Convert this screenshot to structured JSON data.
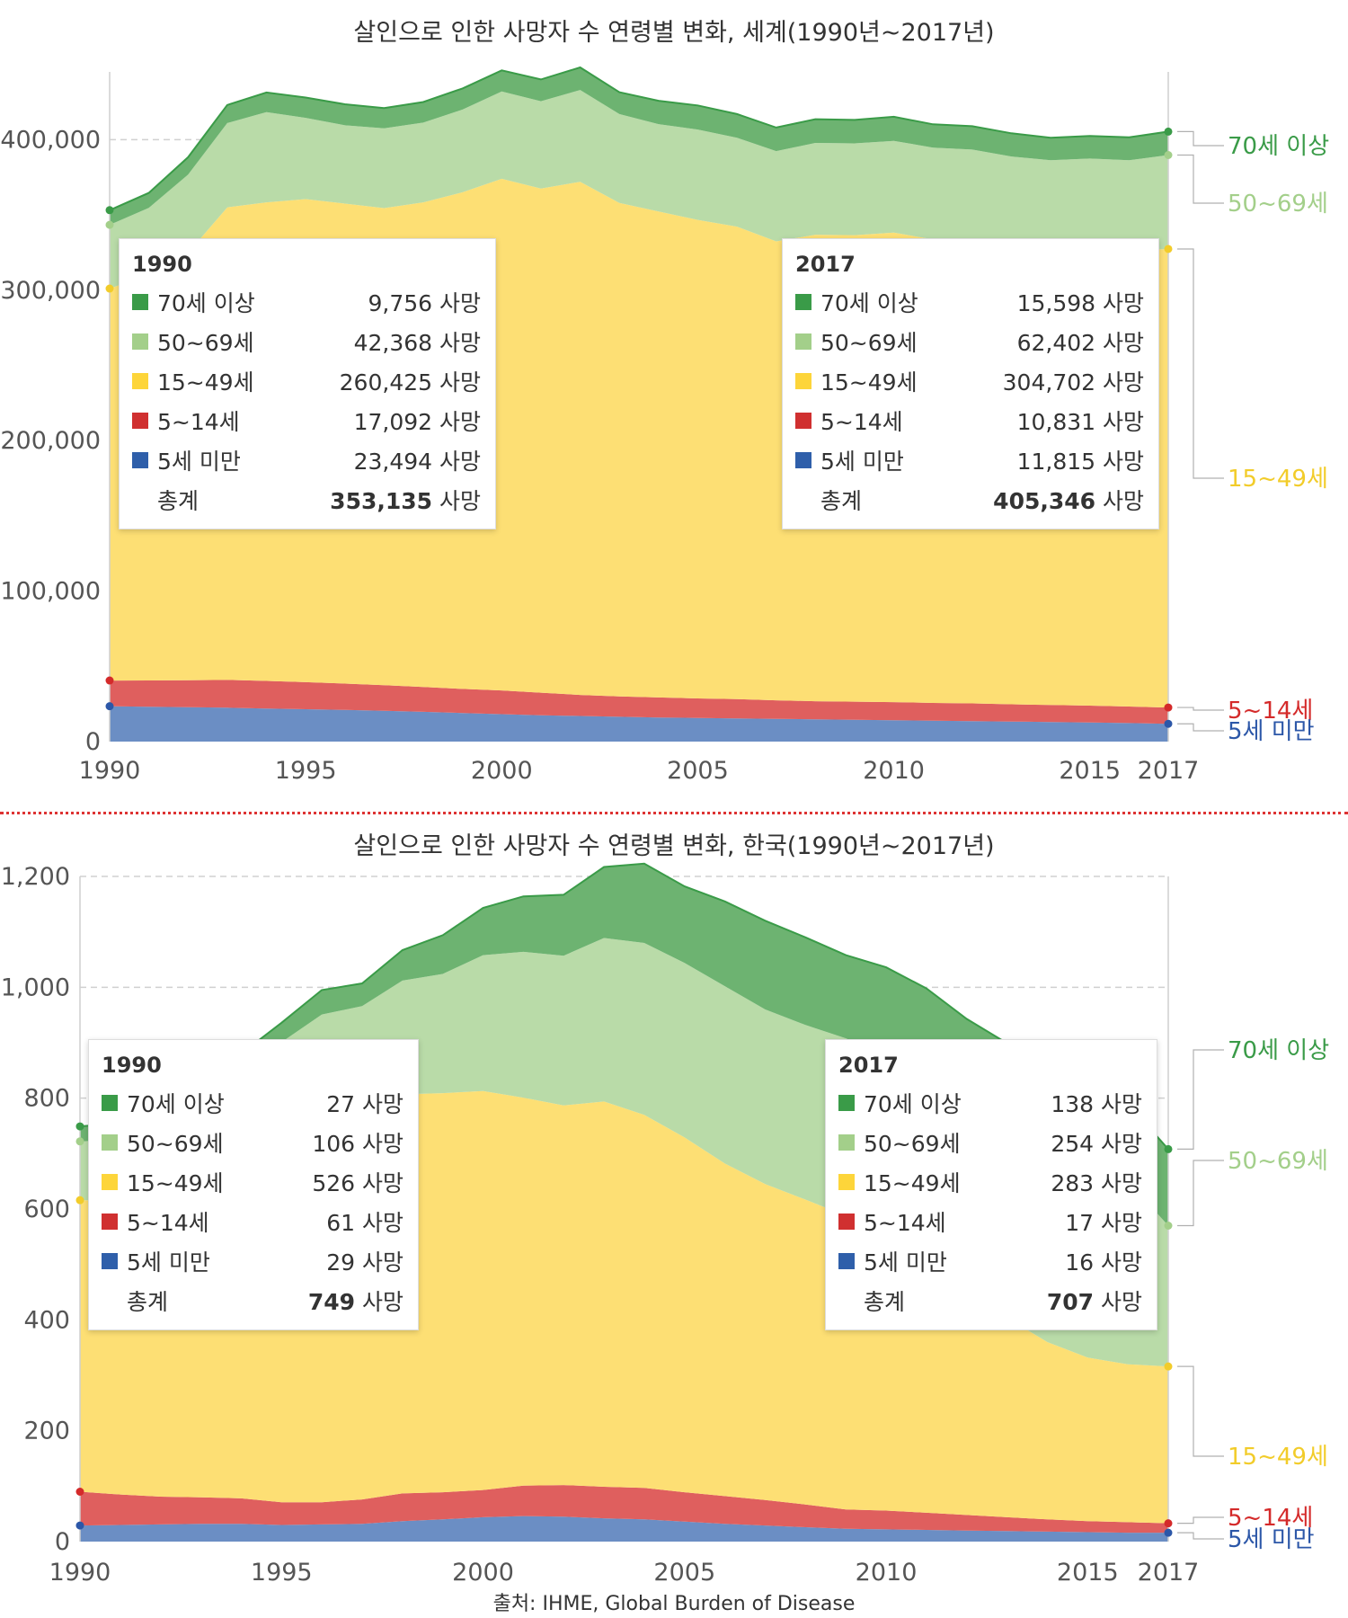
{
  "colors": {
    "age70": "#3a9b48",
    "age70_fill": "#6db371",
    "age50": "#b9dba8",
    "age50_label": "#a3cf8a",
    "age15": "#fddf74",
    "age15_label": "#f2cc2a",
    "age5_14": "#df5f5e",
    "age5_14_label": "#d42a2a",
    "under5": "#6b8ec4",
    "under5_label": "#2c57a8",
    "sw70": "#3a9b48",
    "sw50": "#a3cf8a",
    "sw15": "#fdd53a",
    "sw5_14": "#d03030",
    "swUnder5": "#2f5faa"
  },
  "chart_data": [
    {
      "type": "area",
      "stacked": true,
      "title": "살인으로 인한 사망자 수 연령별 변화, 세계(1990년~2017년)",
      "x_ticks": [
        "1990",
        "1995",
        "2000",
        "2005",
        "2010",
        "2015",
        "2017"
      ],
      "y_ticks": [
        "0",
        "100,000",
        "200,000",
        "300,000",
        "400,000"
      ],
      "ylim": [
        0,
        445000
      ],
      "x": [
        1990,
        1991,
        1992,
        1993,
        1994,
        1995,
        1996,
        1997,
        1998,
        1999,
        2000,
        2001,
        2002,
        2003,
        2004,
        2005,
        2006,
        2007,
        2008,
        2009,
        2010,
        2011,
        2012,
        2013,
        2014,
        2015,
        2016,
        2017
      ],
      "series": [
        {
          "name": "5세 미만",
          "values": [
            23494,
            23200,
            22800,
            22500,
            22000,
            21500,
            21000,
            20500,
            19800,
            19000,
            18200,
            17500,
            17000,
            16500,
            16000,
            15700,
            15400,
            15100,
            14800,
            14500,
            14200,
            13900,
            13600,
            13300,
            13000,
            12700,
            12300,
            11815
          ]
        },
        {
          "name": "5~14세",
          "values": [
            17092,
            17400,
            18000,
            18500,
            18300,
            18000,
            17500,
            17000,
            16500,
            16000,
            15800,
            15000,
            14000,
            13500,
            13300,
            13000,
            12800,
            12300,
            12000,
            12000,
            12000,
            11800,
            11800,
            11500,
            11300,
            11200,
            11000,
            10831
          ]
        },
        {
          "name": "15~49세",
          "values": [
            260425,
            270000,
            284000,
            314000,
            318000,
            321000,
            319000,
            317000,
            322000,
            330000,
            340000,
            335000,
            341000,
            328000,
            323000,
            318000,
            314000,
            305000,
            310000,
            310000,
            312000,
            308000,
            305000,
            302000,
            301000,
            303000,
            303000,
            304702
          ]
        },
        {
          "name": "50~69세",
          "values": [
            42368,
            44000,
            52000,
            56000,
            60000,
            54000,
            52000,
            53000,
            53000,
            55000,
            58000,
            58000,
            61000,
            59000,
            58000,
            60000,
            59000,
            60000,
            61000,
            61000,
            61000,
            61000,
            63000,
            62000,
            61000,
            60500,
            60000,
            62402
          ]
        },
        {
          "name": "70세 이상",
          "values": [
            9756,
            10000,
            11500,
            12000,
            13000,
            13500,
            14000,
            13500,
            13700,
            14000,
            14000,
            14500,
            15000,
            14500,
            15500,
            16000,
            15800,
            15600,
            15800,
            15600,
            16000,
            15500,
            15500,
            15400,
            15000,
            15100,
            15200,
            15598
          ]
        }
      ],
      "end_labels": [
        "70세 이상",
        "50~69세",
        "15~49세",
        "5~14세",
        "5세 미만"
      ],
      "tooltips": [
        {
          "year": "1990",
          "rows": [
            {
              "label": "70세 이상",
              "value": "9,756",
              "unit": "사망"
            },
            {
              "label": "50~69세",
              "value": "42,368",
              "unit": "사망"
            },
            {
              "label": "15~49세",
              "value": "260,425",
              "unit": "사망"
            },
            {
              "label": "5~14세",
              "value": "17,092",
              "unit": "사망"
            },
            {
              "label": "5세 미만",
              "value": "23,494",
              "unit": "사망"
            }
          ],
          "total_label": "총계",
          "total_value": "353,135",
          "total_unit": "사망"
        },
        {
          "year": "2017",
          "rows": [
            {
              "label": "70세 이상",
              "value": "15,598",
              "unit": "사망"
            },
            {
              "label": "50~69세",
              "value": "62,402",
              "unit": "사망"
            },
            {
              "label": "15~49세",
              "value": "304,702",
              "unit": "사망"
            },
            {
              "label": "5~14세",
              "value": "10,831",
              "unit": "사망"
            },
            {
              "label": "5세 미만",
              "value": "11,815",
              "unit": "사망"
            }
          ],
          "total_label": "총계",
          "total_value": "405,346",
          "total_unit": "사망"
        }
      ]
    },
    {
      "type": "area",
      "stacked": true,
      "title": "살인으로 인한 사망자 수 연령별 변화, 한국(1990년~2017년)",
      "x_ticks": [
        "1990",
        "1995",
        "2000",
        "2005",
        "2010",
        "2015",
        "2017"
      ],
      "y_ticks": [
        "0",
        "200",
        "400",
        "600",
        "800",
        "1,000",
        "1,200"
      ],
      "ylim": [
        0,
        1200
      ],
      "x": [
        1990,
        1991,
        1992,
        1993,
        1994,
        1995,
        1996,
        1997,
        1998,
        1999,
        2000,
        2001,
        2002,
        2003,
        2004,
        2005,
        2006,
        2007,
        2008,
        2009,
        2010,
        2011,
        2012,
        2013,
        2014,
        2015,
        2016,
        2017
      ],
      "series": [
        {
          "name": "5세 미만",
          "values": [
            29,
            30,
            31,
            32,
            32,
            30,
            31,
            32,
            37,
            40,
            44,
            46,
            45,
            42,
            40,
            36,
            32,
            29,
            26,
            23,
            22,
            21,
            20,
            19,
            18,
            17,
            16,
            16
          ]
        },
        {
          "name": "5~14세",
          "values": [
            61,
            55,
            50,
            48,
            46,
            41,
            40,
            44,
            50,
            49,
            49,
            55,
            57,
            57,
            57,
            53,
            50,
            46,
            41,
            35,
            34,
            31,
            28,
            25,
            22,
            20,
            19,
            17
          ]
        },
        {
          "name": "15~49세",
          "values": [
            526,
            530,
            550,
            580,
            620,
            660,
            680,
            680,
            720,
            720,
            720,
            700,
            685,
            695,
            673,
            640,
            600,
            570,
            550,
            530,
            480,
            450,
            400,
            360,
            320,
            295,
            285,
            283
          ]
        },
        {
          "name": "50~69세",
          "values": [
            106,
            110,
            120,
            130,
            150,
            170,
            200,
            210,
            205,
            215,
            245,
            263,
            270,
            295,
            310,
            315,
            320,
            315,
            315,
            320,
            340,
            345,
            345,
            340,
            340,
            340,
            330,
            254
          ]
        },
        {
          "name": "70세 이상",
          "values": [
            27,
            30,
            30,
            30,
            32,
            35,
            44,
            41,
            55,
            70,
            85,
            100,
            110,
            128,
            143,
            138,
            153,
            160,
            158,
            150,
            160,
            151,
            150,
            155,
            150,
            160,
            140,
            138
          ]
        }
      ],
      "end_labels": [
        "70세 이상",
        "50~69세",
        "15~49세",
        "5~14세",
        "5세 미만"
      ],
      "tooltips": [
        {
          "year": "1990",
          "rows": [
            {
              "label": "70세 이상",
              "value": "27",
              "unit": "사망"
            },
            {
              "label": "50~69세",
              "value": "106",
              "unit": "사망"
            },
            {
              "label": "15~49세",
              "value": "526",
              "unit": "사망"
            },
            {
              "label": "5~14세",
              "value": "61",
              "unit": "사망"
            },
            {
              "label": "5세 미만",
              "value": "29",
              "unit": "사망"
            }
          ],
          "total_label": "총계",
          "total_value": "749",
          "total_unit": "사망"
        },
        {
          "year": "2017",
          "rows": [
            {
              "label": "70세 이상",
              "value": "138",
              "unit": "사망"
            },
            {
              "label": "50~69세",
              "value": "254",
              "unit": "사망"
            },
            {
              "label": "15~49세",
              "value": "283",
              "unit": "사망"
            },
            {
              "label": "5~14세",
              "value": "17",
              "unit": "사망"
            },
            {
              "label": "5세 미만",
              "value": "16",
              "unit": "사망"
            }
          ],
          "total_label": "총계",
          "total_value": "707",
          "total_unit": "사망"
        }
      ]
    }
  ],
  "source": "출처: IHME, Global Burden of Disease"
}
